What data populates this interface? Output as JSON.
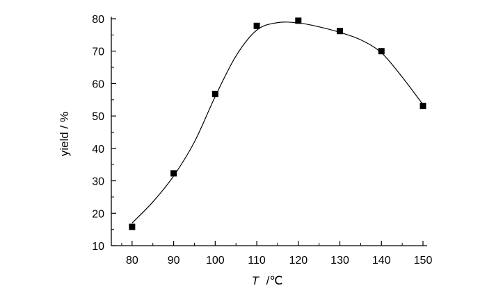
{
  "chart_data": {
    "type": "scatter",
    "title": "",
    "xlabel_var": "T",
    "xlabel_unit": "/℃",
    "ylabel": "yield / %",
    "xlim": [
      75,
      150
    ],
    "ylim": [
      10,
      80
    ],
    "xticks": [
      80,
      90,
      100,
      110,
      120,
      130,
      140,
      150
    ],
    "yticks": [
      10,
      20,
      30,
      40,
      50,
      60,
      70,
      80
    ],
    "grid": false,
    "legend": "none",
    "series": [
      {
        "marker": "square",
        "color": "#000000",
        "x": [
          80,
          90,
          100,
          110,
          120,
          130,
          140,
          150
        ],
        "y": [
          15.8,
          32.3,
          56.8,
          77.8,
          79.4,
          76.2,
          70.0,
          53.1
        ]
      }
    ],
    "fit_curve": {
      "color": "#000000",
      "x": [
        80,
        85,
        90,
        95,
        100,
        105,
        110,
        115,
        120,
        125,
        130,
        135,
        140,
        145,
        150
      ],
      "y": [
        17.0,
        23.5,
        31.5,
        42.0,
        56.0,
        68.5,
        76.5,
        78.8,
        78.7,
        77.5,
        75.8,
        73.5,
        69.5,
        62.0,
        53.5
      ]
    }
  }
}
